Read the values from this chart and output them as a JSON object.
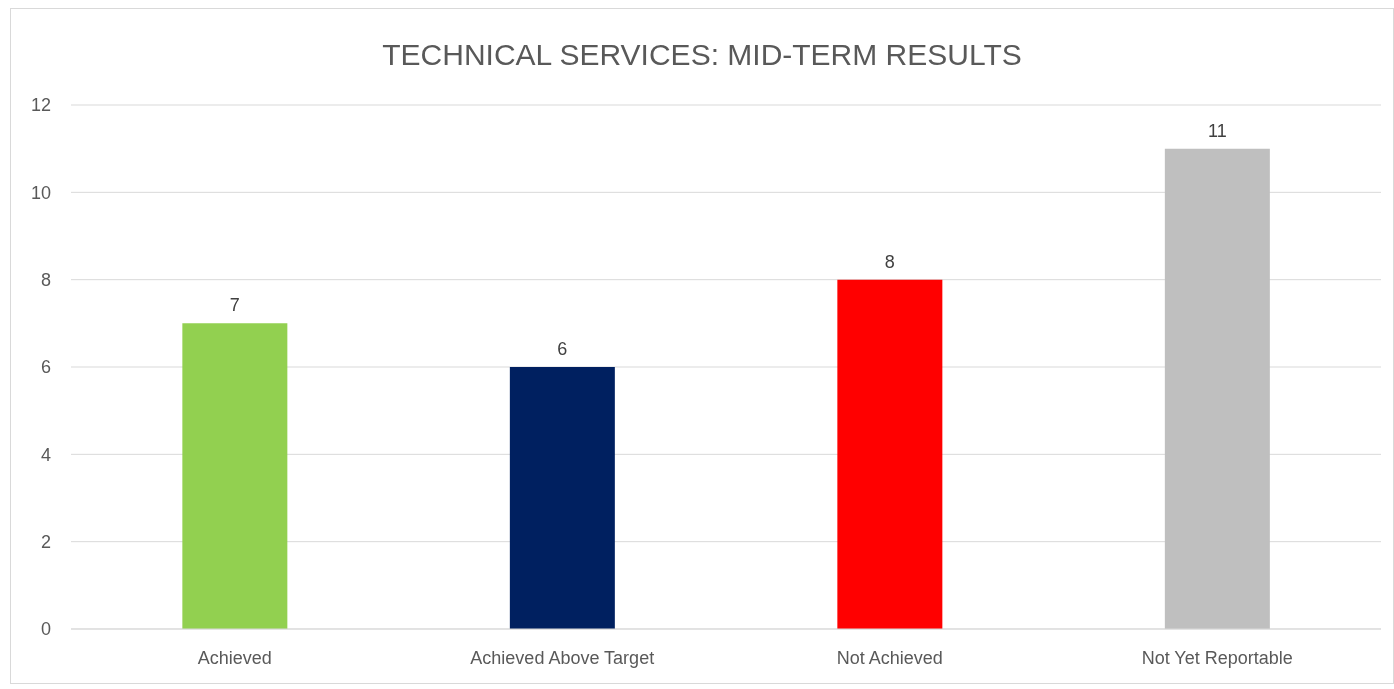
{
  "chart_data": {
    "type": "bar",
    "title": "TECHNICAL SERVICES: MID-TERM RESULTS",
    "categories": [
      "Achieved",
      "Achieved Above Target",
      "Not Achieved",
      "Not Yet Reportable"
    ],
    "values": [
      7,
      6,
      8,
      11
    ],
    "colors": [
      "#92d050",
      "#002060",
      "#ff0000",
      "#bfbfbf"
    ],
    "ylim": [
      0,
      12
    ],
    "yticks": [
      0,
      2,
      4,
      6,
      8,
      10,
      12
    ],
    "grid": "y",
    "data_labels": true
  }
}
